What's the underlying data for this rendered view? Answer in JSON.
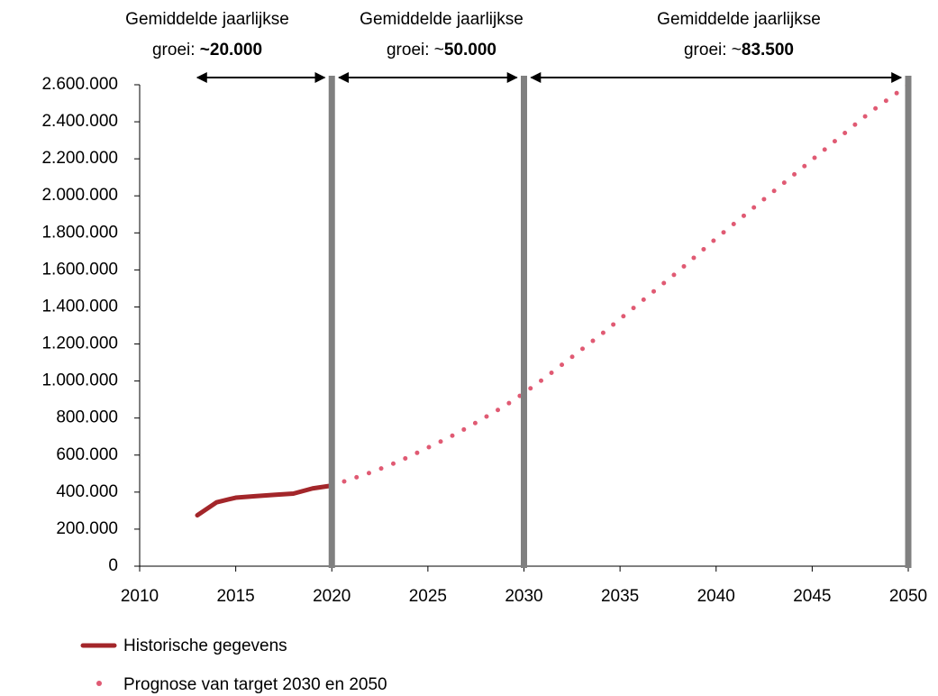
{
  "chart_data": {
    "type": "line",
    "xlim": [
      2010,
      2050
    ],
    "xticks": [
      2010,
      2015,
      2020,
      2025,
      2030,
      2035,
      2040,
      2045,
      2050
    ],
    "ylim": [
      0,
      2600000
    ],
    "yticks": [
      0,
      {
        "value": 200000,
        "label": "200.000"
      },
      {
        "value": 400000,
        "label": "400.000"
      },
      {
        "value": 600000,
        "label": "600.000"
      },
      {
        "value": 800000,
        "label": "800.000"
      },
      {
        "value": 1000000,
        "label": "1.000.000"
      },
      {
        "value": 1200000,
        "label": "1.200.000"
      },
      {
        "value": 1400000,
        "label": "1.400.000"
      },
      {
        "value": 1600000,
        "label": "1.600.000"
      },
      {
        "value": 1800000,
        "label": "1.800.000"
      },
      {
        "value": 2000000,
        "label": "2.000.000"
      },
      {
        "value": 2200000,
        "label": "2.200.000"
      },
      {
        "value": 2400000,
        "label": "2.400.000"
      },
      {
        "value": 2600000,
        "label": "2.600.000"
      }
    ],
    "grid": false,
    "legend": "bottom-left",
    "vlines": [
      2020,
      2030,
      2050
    ],
    "vline_color": "#808080",
    "series": [
      {
        "name": "Historische gegevens",
        "color": "#a3262a",
        "style": "solid",
        "x": [
          2013,
          2014,
          2015,
          2016,
          2017,
          2018,
          2019,
          2020
        ],
        "values": [
          275000,
          345000,
          370000,
          378000,
          385000,
          392000,
          420000,
          435000
        ]
      },
      {
        "name": "Prognose van target 2030 en 2050",
        "color": "#e05a73",
        "style": "dotted",
        "x": [
          2020,
          2021,
          2022,
          2023,
          2024,
          2025,
          2026,
          2027,
          2028,
          2029,
          2030,
          2031,
          2032,
          2033,
          2034,
          2035,
          2036,
          2037,
          2038,
          2039,
          2040,
          2041,
          2042,
          2043,
          2044,
          2045,
          2046,
          2047,
          2048,
          2049,
          2050
        ],
        "values": [
          435000,
          470000,
          505000,
          545000,
          590000,
          640000,
          690000,
          745000,
          805000,
          865000,
          935000,
          1010000,
          1090000,
          1170000,
          1250000,
          1335000,
          1420000,
          1505000,
          1590000,
          1680000,
          1770000,
          1855000,
          1940000,
          2025000,
          2110000,
          2195000,
          2280000,
          2365000,
          2450000,
          2525000,
          2600000
        ]
      }
    ],
    "annotations": [
      {
        "line1": "Gemiddelde jaarlijkse",
        "prefix": "groei: ",
        "bold": "~20.000",
        "x_range": [
          2013,
          2020
        ]
      },
      {
        "line1": "Gemiddelde jaarlijkse",
        "prefix": "groei: ~",
        "bold": "50.000",
        "x_range": [
          2020,
          2030
        ]
      },
      {
        "line1": "Gemiddelde jaarlijkse",
        "prefix": "groei: ~",
        "bold": "83.500",
        "x_range": [
          2030,
          2050
        ]
      }
    ]
  }
}
